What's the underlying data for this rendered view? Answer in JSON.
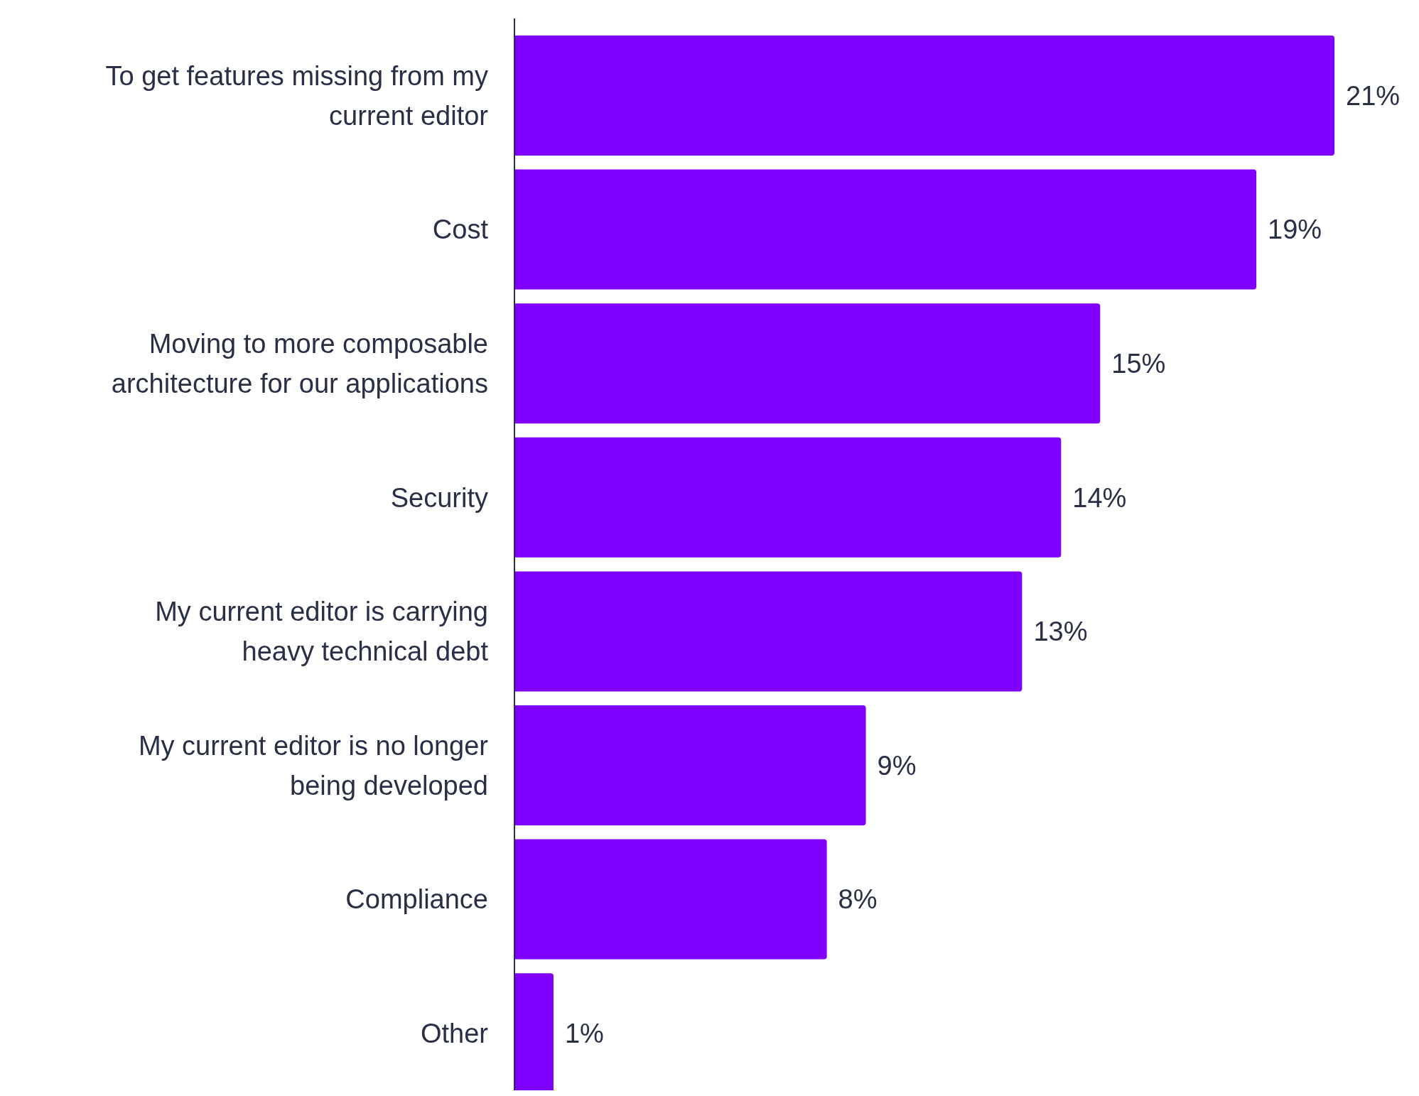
{
  "chart_data": {
    "type": "bar",
    "orientation": "horizontal",
    "data_labels": true,
    "color": "#8000ff",
    "categories": [
      "To get features missing from my current editor",
      "Cost",
      "Moving to more composable architecture for our applications",
      "Security",
      "My current editor is carrying heavy technical debt",
      "My current editor is no longer being developed",
      "Compliance",
      "Other"
    ],
    "values": [
      21,
      19,
      15,
      14,
      13,
      9,
      8,
      1
    ],
    "value_labels": [
      "21%",
      "19%",
      "15%",
      "14%",
      "13%",
      "9%",
      "8%",
      "1%"
    ]
  }
}
